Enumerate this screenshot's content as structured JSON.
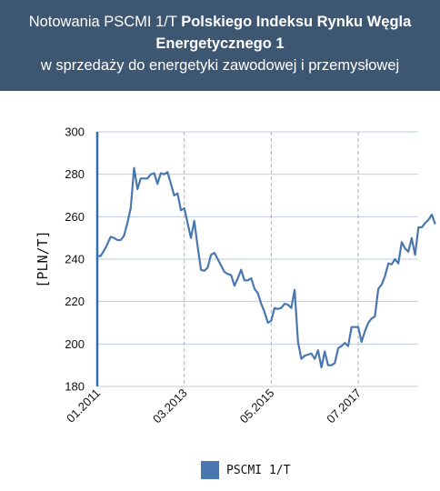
{
  "header": {
    "line1_normal": "Notowania PSCMI 1/T ",
    "line1_bold": "Polskiego Indeksu Rynku Węgla",
    "line2_bold": "Energetycznego 1",
    "line3": "w sprzedaży do energetyki zawodowej i przemysłowej"
  },
  "colors": {
    "header_bg": "#3d5671",
    "series": "#4a77b0",
    "axis": "#2e6fb0",
    "grid": "#bfcbe0"
  },
  "chart_data": {
    "type": "line",
    "ylabel": "[PLN/T]",
    "ylim": [
      180,
      300
    ],
    "yticks": [
      180,
      200,
      220,
      240,
      260,
      280,
      300
    ],
    "grid": true,
    "legend_position": "bottom",
    "xticks": [
      "01.2011",
      "03.2013",
      "05.2015",
      "07.2017"
    ],
    "series": [
      {
        "name": "PSCMI 1/T",
        "points": [
          [
            "01.2011",
            241.5
          ],
          [
            "02.2011",
            241.5
          ],
          [
            "03.2011",
            244.0
          ],
          [
            "04.2011",
            247.0
          ],
          [
            "05.2011",
            250.5
          ],
          [
            "06.2011",
            250.0
          ],
          [
            "07.2011",
            249.0
          ],
          [
            "08.2011",
            249.0
          ],
          [
            "09.2011",
            251.0
          ],
          [
            "10.2011",
            257.0
          ],
          [
            "11.2011",
            264.0
          ],
          [
            "12.2011",
            283.0
          ],
          [
            "01.2012",
            273.0
          ],
          [
            "02.2012",
            278.0
          ],
          [
            "03.2012",
            278.0
          ],
          [
            "04.2012",
            278.0
          ],
          [
            "05.2012",
            280.0
          ],
          [
            "06.2012",
            280.5
          ],
          [
            "07.2012",
            275.5
          ],
          [
            "08.2012",
            280.5
          ],
          [
            "09.2012",
            280.0
          ],
          [
            "10.2012",
            281.0
          ],
          [
            "11.2012",
            275.5
          ],
          [
            "12.2012",
            270.0
          ],
          [
            "01.2013",
            271.0
          ],
          [
            "02.2013",
            263.0
          ],
          [
            "03.2013",
            264.0
          ],
          [
            "04.2013",
            257.0
          ],
          [
            "05.2013",
            250.0
          ],
          [
            "06.2013",
            258.0
          ],
          [
            "07.2013",
            246.0
          ],
          [
            "08.2013",
            235.0
          ],
          [
            "09.2013",
            234.5
          ],
          [
            "10.2013",
            236.0
          ],
          [
            "11.2013",
            242.0
          ],
          [
            "12.2013",
            243.0
          ],
          [
            "01.2014",
            240.0
          ],
          [
            "02.2014",
            237.0
          ],
          [
            "03.2014",
            234.0
          ],
          [
            "04.2014",
            233.0
          ],
          [
            "05.2014",
            232.5
          ],
          [
            "06.2014",
            227.5
          ],
          [
            "07.2014",
            231.0
          ],
          [
            "08.2014",
            235.0
          ],
          [
            "09.2014",
            230.0
          ],
          [
            "10.2014",
            230.0
          ],
          [
            "11.2014",
            231.0
          ],
          [
            "12.2014",
            226.0
          ],
          [
            "01.2015",
            224.0
          ],
          [
            "02.2015",
            219.0
          ],
          [
            "03.2015",
            215.0
          ],
          [
            "04.2015",
            210.0
          ],
          [
            "05.2015",
            211.0
          ],
          [
            "06.2015",
            217.0
          ],
          [
            "07.2015",
            216.5
          ],
          [
            "08.2015",
            217.0
          ],
          [
            "09.2015",
            219.0
          ],
          [
            "10.2015",
            218.5
          ],
          [
            "11.2015",
            217.0
          ],
          [
            "12.2015",
            225.5
          ],
          [
            "01.2016",
            201.0
          ],
          [
            "02.2016",
            193.0
          ],
          [
            "03.2016",
            194.5
          ],
          [
            "04.2016",
            195.0
          ],
          [
            "05.2016",
            195.5
          ],
          [
            "06.2016",
            193.0
          ],
          [
            "07.2016",
            197.0
          ],
          [
            "08.2016",
            189.0
          ],
          [
            "09.2016",
            196.5
          ],
          [
            "10.2016",
            190.0
          ],
          [
            "11.2016",
            190.0
          ],
          [
            "12.2016",
            191.0
          ],
          [
            "01.2017",
            198.0
          ],
          [
            "02.2017",
            199.0
          ],
          [
            "03.2017",
            200.5
          ],
          [
            "04.2017",
            199.0
          ],
          [
            "05.2017",
            208.0
          ],
          [
            "06.2017",
            208.0
          ],
          [
            "07.2017",
            208.0
          ],
          [
            "08.2017",
            201.0
          ],
          [
            "09.2017",
            206.0
          ],
          [
            "10.2017",
            210.0
          ],
          [
            "11.2017",
            212.0
          ],
          [
            "12.2017",
            213.0
          ],
          [
            "01.2018",
            226.0
          ],
          [
            "02.2018",
            228.0
          ],
          [
            "03.2018",
            232.0
          ],
          [
            "04.2018",
            238.0
          ],
          [
            "05.2018",
            237.5
          ],
          [
            "06.2018",
            240.0
          ],
          [
            "07.2018",
            238.0
          ],
          [
            "08.2018",
            248.0
          ],
          [
            "09.2018",
            245.0
          ],
          [
            "10.2018",
            243.5
          ],
          [
            "11.2018",
            250.0
          ],
          [
            "12.2018",
            242.0
          ],
          [
            "01.2019",
            255.0
          ],
          [
            "02.2019",
            255.0
          ],
          [
            "03.2019",
            257.0
          ],
          [
            "04.2019",
            258.5
          ],
          [
            "05.2019",
            261.0
          ],
          [
            "06.2019",
            256.5
          ]
        ]
      }
    ]
  }
}
